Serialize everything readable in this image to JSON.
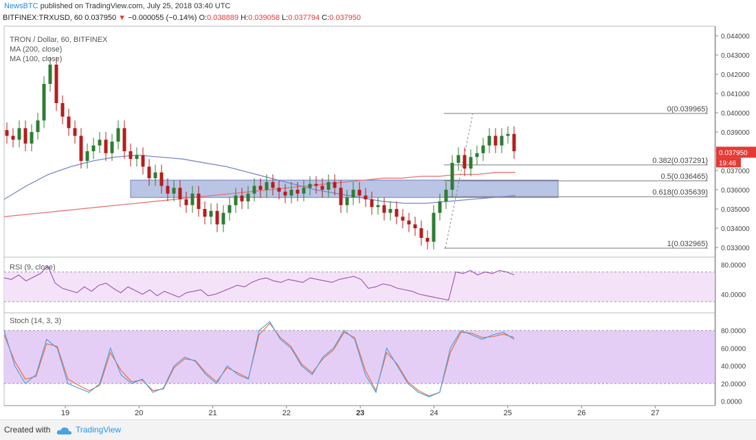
{
  "header": {
    "brand": "NewsBTC",
    "published": "published on TradingView.com, July 25, 2018 03:40 UTC",
    "symbol_line": "BITFINEX:TRXUSD, 60",
    "last": "0.037950",
    "change": "−0.000055 (−0.14%)",
    "open_label": "O:",
    "open": "0.038889",
    "high_label": "H:",
    "high": "0.039058",
    "low_label": "L:",
    "low": "0.037794",
    "close_label": "C:",
    "close": "0.037950"
  },
  "legend": {
    "title": "TRON / Dollar, 60, BITFINEX",
    "ma200": "MA (200, close)",
    "ma100": "MA (100, close)"
  },
  "indicators": {
    "rsi_label": "RSI (9, close)",
    "stoch_label": "Stoch (14, 3, 3)"
  },
  "price_tag": {
    "value": "0.037950",
    "countdown": "19:46"
  },
  "footer": {
    "created": "Created with",
    "tradingview": "TradingView"
  },
  "colors": {
    "up": "#2e7d32",
    "down": "#b71c1c",
    "ma200": "#e57373",
    "ma100": "#7986cb",
    "zone": "#8c9fd4",
    "rsi": "#9c4db5",
    "stoch_k": "#4aa3df",
    "stoch_d": "#ef6c3a"
  },
  "chart_data": {
    "type": "candlestick",
    "price_axis_ticks": [
      "0.044000",
      "0.043000",
      "0.042000",
      "0.041000",
      "0.040000",
      "0.039000",
      "0.038000",
      "0.037000",
      "0.036000",
      "0.035000",
      "0.034000",
      "0.033000"
    ],
    "ylim": [
      0.0325,
      0.0445
    ],
    "x_ticks": [
      "19",
      "20",
      "21",
      "22",
      "23",
      "24",
      "25",
      "26",
      "27"
    ],
    "fibonacci": [
      {
        "label": "0(0.039965)",
        "value": 0.039965
      },
      {
        "label": "0.382(0.037291)",
        "value": 0.037291
      },
      {
        "label": "0.5(0.036465)",
        "value": 0.036465
      },
      {
        "label": "0.618(0.035639)",
        "value": 0.035639
      },
      {
        "label": "1(0.032965)",
        "value": 0.032965
      }
    ],
    "zone": {
      "low": 0.0356,
      "high": 0.0365
    },
    "rsi_ticks": [
      "80.0000",
      "40.0000"
    ],
    "rsi_levels": [
      70,
      30
    ],
    "stoch_ticks": [
      "80.0000",
      "60.0000",
      "40.0000",
      "20.0000",
      "0.0000"
    ],
    "stoch_levels": [
      80,
      20
    ],
    "closes": [
      0.0388,
      0.0386,
      0.0392,
      0.0384,
      0.039,
      0.0396,
      0.0415,
      0.0425,
      0.0405,
      0.0398,
      0.0392,
      0.0388,
      0.0375,
      0.038,
      0.0383,
      0.0386,
      0.0379,
      0.0385,
      0.0392,
      0.038,
      0.0376,
      0.0378,
      0.0372,
      0.0366,
      0.0369,
      0.0362,
      0.0358,
      0.0361,
      0.0355,
      0.0352,
      0.0358,
      0.035,
      0.0346,
      0.0349,
      0.0342,
      0.0348,
      0.0352,
      0.0357,
      0.0354,
      0.0358,
      0.0362,
      0.036,
      0.0364,
      0.0361,
      0.0359,
      0.0357,
      0.036,
      0.0358,
      0.0361,
      0.0363,
      0.0362,
      0.036,
      0.0364,
      0.0361,
      0.0352,
      0.0356,
      0.036,
      0.0357,
      0.0355,
      0.0351,
      0.0352,
      0.0348,
      0.035,
      0.0346,
      0.0344,
      0.0342,
      0.034,
      0.0335,
      0.0333,
      0.0348,
      0.0354,
      0.036,
      0.0374,
      0.0378,
      0.0371,
      0.0377,
      0.0379,
      0.0383,
      0.0388,
      0.0383,
      0.0388,
      0.0389,
      0.038
    ],
    "opens": [
      0.0391,
      0.0388,
      0.0386,
      0.0392,
      0.0384,
      0.039,
      0.0396,
      0.0415,
      0.0425,
      0.0405,
      0.0398,
      0.0392,
      0.0388,
      0.0375,
      0.038,
      0.0383,
      0.0386,
      0.0379,
      0.0385,
      0.0392,
      0.038,
      0.0376,
      0.0378,
      0.0372,
      0.0366,
      0.0369,
      0.0362,
      0.0358,
      0.0361,
      0.0355,
      0.0352,
      0.0358,
      0.035,
      0.0346,
      0.0349,
      0.0342,
      0.0348,
      0.0352,
      0.0357,
      0.0354,
      0.0358,
      0.0362,
      0.036,
      0.0364,
      0.0361,
      0.0359,
      0.0357,
      0.036,
      0.0358,
      0.0361,
      0.0363,
      0.0362,
      0.036,
      0.0364,
      0.0361,
      0.0352,
      0.0356,
      0.036,
      0.0357,
      0.0355,
      0.0351,
      0.0352,
      0.0348,
      0.035,
      0.0346,
      0.0344,
      0.0342,
      0.034,
      0.0335,
      0.0333,
      0.0348,
      0.0354,
      0.036,
      0.0374,
      0.0378,
      0.0371,
      0.0377,
      0.0379,
      0.0383,
      0.0388,
      0.0383,
      0.0388,
      0.0389
    ],
    "ma200": [
      0.0346,
      0.0347,
      0.0348,
      0.0349,
      0.035,
      0.0351,
      0.0352,
      0.0353,
      0.0354,
      0.0355,
      0.0356,
      0.0357,
      0.0358,
      0.0359,
      0.036,
      0.0361,
      0.0362,
      0.0363,
      0.0364,
      0.0365,
      0.0366,
      0.0366,
      0.0367,
      0.0367,
      0.0368,
      0.0368,
      0.0369,
      0.0369
    ],
    "ma100": [
      0.0355,
      0.0362,
      0.0368,
      0.0372,
      0.0375,
      0.0377,
      0.0378,
      0.0377,
      0.0376,
      0.0374,
      0.0372,
      0.0369,
      0.0366,
      0.0363,
      0.036,
      0.0358,
      0.0356,
      0.0354,
      0.0353,
      0.0353,
      0.0354,
      0.0355,
      0.0356,
      0.0357
    ],
    "rsi": [
      62,
      60,
      66,
      58,
      63,
      68,
      78,
      55,
      48,
      45,
      42,
      50,
      44,
      52,
      55,
      48,
      42,
      50,
      45,
      40,
      46,
      38,
      44,
      40,
      36,
      42,
      44,
      46,
      38,
      40,
      44,
      48,
      52,
      50,
      56,
      60,
      62,
      58,
      56,
      60,
      58,
      56,
      62,
      60,
      58,
      56,
      60,
      62,
      64,
      60,
      48,
      50,
      54,
      52,
      48,
      46,
      44,
      40,
      38,
      36,
      34,
      32,
      70,
      68,
      72,
      66,
      70,
      68,
      72,
      70,
      66
    ],
    "stoch_k": [
      80,
      40,
      20,
      30,
      70,
      60,
      20,
      15,
      10,
      20,
      60,
      30,
      20,
      25,
      10,
      15,
      40,
      50,
      45,
      30,
      20,
      40,
      30,
      25,
      80,
      90,
      70,
      60,
      40,
      30,
      50,
      60,
      80,
      70,
      30,
      10,
      60,
      40,
      20,
      10,
      5,
      10,
      60,
      80,
      75,
      70,
      75,
      78,
      70
    ],
    "stoch_d": [
      75,
      45,
      25,
      28,
      65,
      62,
      25,
      18,
      12,
      18,
      55,
      35,
      22,
      24,
      12,
      14,
      38,
      48,
      46,
      32,
      22,
      38,
      32,
      26,
      75,
      88,
      72,
      62,
      42,
      32,
      48,
      58,
      78,
      72,
      35,
      12,
      55,
      42,
      22,
      12,
      6,
      10,
      55,
      78,
      77,
      72,
      73,
      76,
      72
    ]
  }
}
